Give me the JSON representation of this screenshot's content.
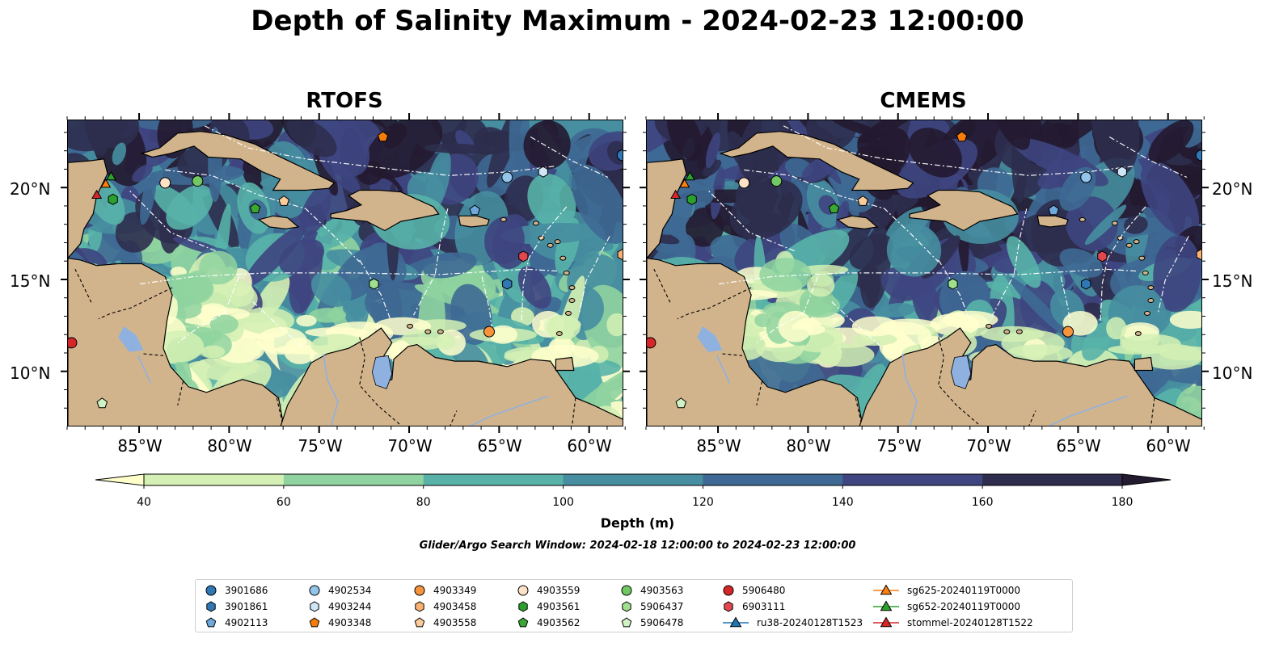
{
  "title": "Depth of Salinity Maximum - 2024-02-23 12:00:00",
  "panels": [
    {
      "title": "RTOFS"
    },
    {
      "title": "CMEMS"
    }
  ],
  "lat_labels": [
    "20°N",
    "15°N",
    "10°N"
  ],
  "lon_labels": [
    "85°W",
    "80°W",
    "75°W",
    "70°W",
    "65°W",
    "60°W"
  ],
  "colorbar": {
    "label": "Depth (m)",
    "ticks": [
      "40",
      "60",
      "80",
      "100",
      "120",
      "140",
      "160",
      "180"
    ],
    "colors": [
      "#ffffcc",
      "#d4f0b4",
      "#8fd3a0",
      "#58b2a8",
      "#468ea0",
      "#3e6994",
      "#3e4580",
      "#2e2d4e",
      "#241a30"
    ],
    "extend": "both"
  },
  "search_window": "Glider/Argo Search Window: 2024-02-18 12:00:00 to 2024-02-23 12:00:00",
  "map_colors": {
    "land": "#d2b48c",
    "lake": "#8fb1e0",
    "coast": "#000000",
    "eez": "#ffffff"
  },
  "legend": {
    "items": [
      {
        "label": "3901686",
        "marker": "circle",
        "color": "#2f78b5"
      },
      {
        "label": "3901861",
        "marker": "hexagon",
        "color": "#2f78b5"
      },
      {
        "label": "4902113",
        "marker": "pentagon",
        "color": "#6fa8dc"
      },
      {
        "label": "4902534",
        "marker": "circle",
        "color": "#93c4ea"
      },
      {
        "label": "4903244",
        "marker": "hexagon",
        "color": "#cfe6f6"
      },
      {
        "label": "4903348",
        "marker": "pentagon",
        "color": "#f57d0a"
      },
      {
        "label": "4903349",
        "marker": "circle",
        "color": "#f6933c"
      },
      {
        "label": "4903458",
        "marker": "hexagon",
        "color": "#f9b271"
      },
      {
        "label": "4903558",
        "marker": "pentagon",
        "color": "#fbcb9a"
      },
      {
        "label": "4903559",
        "marker": "circle",
        "color": "#fde2c8"
      },
      {
        "label": "4903561",
        "marker": "hexagon",
        "color": "#2ca02c"
      },
      {
        "label": "4903562",
        "marker": "pentagon",
        "color": "#38a832"
      },
      {
        "label": "4903563",
        "marker": "circle",
        "color": "#72c862"
      },
      {
        "label": "5906437",
        "marker": "hexagon",
        "color": "#9ee08e"
      },
      {
        "label": "5906478",
        "marker": "pentagon",
        "color": "#d0f2c4"
      },
      {
        "label": "5906480",
        "marker": "circle",
        "color": "#d62728"
      },
      {
        "label": "6903111",
        "marker": "hexagon",
        "color": "#e2474f"
      },
      {
        "label": "ru38-20240128T1523",
        "marker": "triangle-line",
        "color": "#1f77b4"
      },
      {
        "label": "sg625-20240119T0000",
        "marker": "triangle-line",
        "color": "#ff7f0e"
      },
      {
        "label": "sg652-20240119T0000",
        "marker": "triangle-line",
        "color": "#2ca02c"
      },
      {
        "label": "stommel-20240128T1522",
        "marker": "triangle-line",
        "color": "#d62728"
      }
    ]
  },
  "map_markers": [
    {
      "id": "3901686",
      "marker": "circle",
      "color": "#2f78b5",
      "lon": -58.2,
      "lat": 21.8
    },
    {
      "id": "4903244",
      "marker": "hexagon",
      "color": "#cfe6f6",
      "lon": -62.6,
      "lat": 20.9
    },
    {
      "id": "4902534",
      "marker": "circle",
      "color": "#93c4ea",
      "lon": -64.6,
      "lat": 20.6
    },
    {
      "id": "4903348",
      "marker": "pentagon",
      "color": "#f57d0a",
      "lon": -71.5,
      "lat": 22.8
    },
    {
      "id": "4903559",
      "marker": "circle",
      "color": "#fde2c8",
      "lon": -83.6,
      "lat": 20.3
    },
    {
      "id": "4903563",
      "marker": "circle",
      "color": "#72c862",
      "lon": -81.8,
      "lat": 20.4
    },
    {
      "id": "4903562",
      "marker": "pentagon",
      "color": "#38a832",
      "lon": -78.6,
      "lat": 18.9
    },
    {
      "id": "4903558",
      "marker": "pentagon",
      "color": "#fbcb9a",
      "lon": -77.0,
      "lat": 19.3
    },
    {
      "id": "4903561",
      "marker": "hexagon",
      "color": "#2ca02c",
      "lon": -86.5,
      "lat": 19.4
    },
    {
      "id": "4902113",
      "marker": "pentagon",
      "color": "#6fa8dc",
      "lon": -66.4,
      "lat": 18.8
    },
    {
      "id": "6903111",
      "marker": "hexagon",
      "color": "#e2474f",
      "lon": -63.7,
      "lat": 16.3
    },
    {
      "id": "3901861",
      "marker": "hexagon",
      "color": "#2f78b5",
      "lon": -64.6,
      "lat": 14.8
    },
    {
      "id": "5906437",
      "marker": "hexagon",
      "color": "#9ee08e",
      "lon": -72.0,
      "lat": 14.8
    },
    {
      "id": "4903458",
      "marker": "hexagon",
      "color": "#f9b271",
      "lon": -58.2,
      "lat": 16.4
    },
    {
      "id": "4903349",
      "marker": "circle",
      "color": "#f6933c",
      "lon": -65.6,
      "lat": 12.2
    },
    {
      "id": "5906480",
      "marker": "circle",
      "color": "#d62728",
      "lon": -88.8,
      "lat": 11.6
    },
    {
      "id": "5906478",
      "marker": "pentagon",
      "color": "#d0f2c4",
      "lon": -87.1,
      "lat": 8.3
    },
    {
      "id": "sg625-20240119T0000",
      "marker": "triangle",
      "color": "#ff7f0e",
      "lon": -86.9,
      "lat": 20.2
    },
    {
      "id": "sg652-20240119T0000",
      "marker": "triangle",
      "color": "#2ca02c",
      "lon": -86.6,
      "lat": 20.6
    },
    {
      "id": "stommel-20240128T1522",
      "marker": "triangle",
      "color": "#d62728",
      "lon": -87.4,
      "lat": 19.6
    }
  ]
}
